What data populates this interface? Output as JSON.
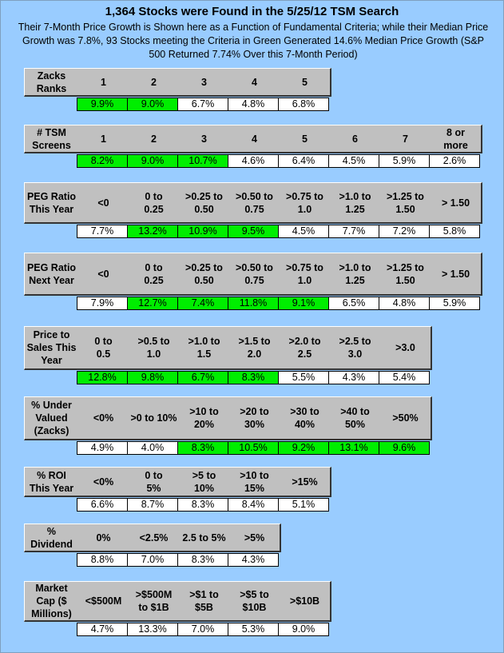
{
  "title": "1,364 Stocks were Found in the 5/25/12 TSM Search",
  "subtitle": "Their 7-Month Price Growth is Shown here as a Function of Fundamental Criteria; while their Median Price Growth was 7.8%, 93 Stocks meeting the Criteria in Green Generated 14.6% Median Price Growth  (S&P 500 Returned 7.74% Over this 7-Month Period)",
  "colors": {
    "background": "#99ccff",
    "header": "#c0c0c0",
    "highlight": "#00ee00",
    "cell": "#ffffff"
  },
  "tables": [
    {
      "label": "Zacks\nRanks",
      "headers": [
        "1",
        "2",
        "3",
        "4",
        "5"
      ],
      "values": [
        "9.9%",
        "9.0%",
        "6.7%",
        "4.8%",
        "6.8%"
      ],
      "highlight": [
        true,
        true,
        false,
        false,
        false
      ]
    },
    {
      "label": "# TSM\nScreens",
      "headers": [
        "1",
        "2",
        "3",
        "4",
        "5",
        "6",
        "7",
        "8 or\nmore"
      ],
      "values": [
        "8.2%",
        "9.0%",
        "10.7%",
        "4.6%",
        "6.4%",
        "4.5%",
        "5.9%",
        "2.6%"
      ],
      "highlight": [
        true,
        true,
        true,
        false,
        false,
        false,
        false,
        false
      ]
    },
    {
      "label": "PEG Ratio\nThis Year",
      "headers": [
        "<0",
        "0 to\n0.25",
        ">0.25 to\n0.50",
        ">0.50 to\n0.75",
        ">0.75 to\n1.0",
        ">1.0 to\n1.25",
        ">1.25 to\n1.50",
        "> 1.50"
      ],
      "values": [
        "7.7%",
        "13.2%",
        "10.9%",
        "9.5%",
        "4.5%",
        "7.7%",
        "7.2%",
        "5.8%"
      ],
      "highlight": [
        false,
        true,
        true,
        true,
        false,
        false,
        false,
        false
      ]
    },
    {
      "label": "PEG Ratio\nNext Year",
      "headers": [
        "<0",
        "0 to\n0.25",
        ">0.25 to\n0.50",
        ">0.50 to\n0.75",
        ">0.75 to\n1.0",
        ">1.0 to\n1.25",
        ">1.25 to\n1.50",
        "> 1.50"
      ],
      "values": [
        "7.9%",
        "12.7%",
        "7.4%",
        "11.8%",
        "9.1%",
        "6.5%",
        "4.8%",
        "5.9%"
      ],
      "highlight": [
        false,
        true,
        true,
        true,
        true,
        false,
        false,
        false
      ]
    },
    {
      "label": "Price to\nSales This\nYear",
      "headers": [
        "0 to\n0.5",
        ">0.5 to\n1.0",
        ">1.0 to\n1.5",
        ">1.5 to\n2.0",
        ">2.0 to\n2.5",
        ">2.5 to\n3.0",
        ">3.0"
      ],
      "values": [
        "12.8%",
        "9.8%",
        "6.7%",
        "8.3%",
        "5.5%",
        "4.3%",
        "5.4%"
      ],
      "highlight": [
        true,
        true,
        true,
        true,
        false,
        false,
        false
      ]
    },
    {
      "label": "% Under\nValued\n(Zacks)",
      "headers": [
        "<0%",
        ">0 to 10%",
        ">10 to\n20%",
        ">20 to\n30%",
        ">30 to\n40%",
        ">40 to\n50%",
        ">50%"
      ],
      "values": [
        "4.9%",
        "4.0%",
        "8.3%",
        "10.5%",
        "9.2%",
        "13.1%",
        "9.6%"
      ],
      "highlight": [
        false,
        false,
        true,
        true,
        true,
        true,
        true
      ]
    },
    {
      "label": "% ROI\nThis Year",
      "headers": [
        "<0%",
        "0 to\n5%",
        ">5 to\n10%",
        ">10 to\n15%",
        ">15%"
      ],
      "values": [
        "6.6%",
        "8.7%",
        "8.3%",
        "8.4%",
        "5.1%"
      ],
      "highlight": [
        false,
        false,
        false,
        false,
        false
      ]
    },
    {
      "label": "%\nDividend",
      "headers": [
        "0%",
        "<2.5%",
        "2.5 to 5%",
        ">5%"
      ],
      "values": [
        "8.8%",
        "7.0%",
        "8.3%",
        "4.3%"
      ],
      "highlight": [
        false,
        false,
        false,
        false
      ]
    },
    {
      "label": "Market\nCap ($\nMillions)",
      "headers": [
        "<$500M",
        ">$500M\nto $1B",
        ">$1 to\n$5B",
        ">$5 to\n$10B",
        ">$10B"
      ],
      "values": [
        "4.7%",
        "13.3%",
        "7.0%",
        "5.3%",
        "9.0%"
      ],
      "highlight": [
        false,
        false,
        false,
        false,
        false
      ]
    }
  ]
}
